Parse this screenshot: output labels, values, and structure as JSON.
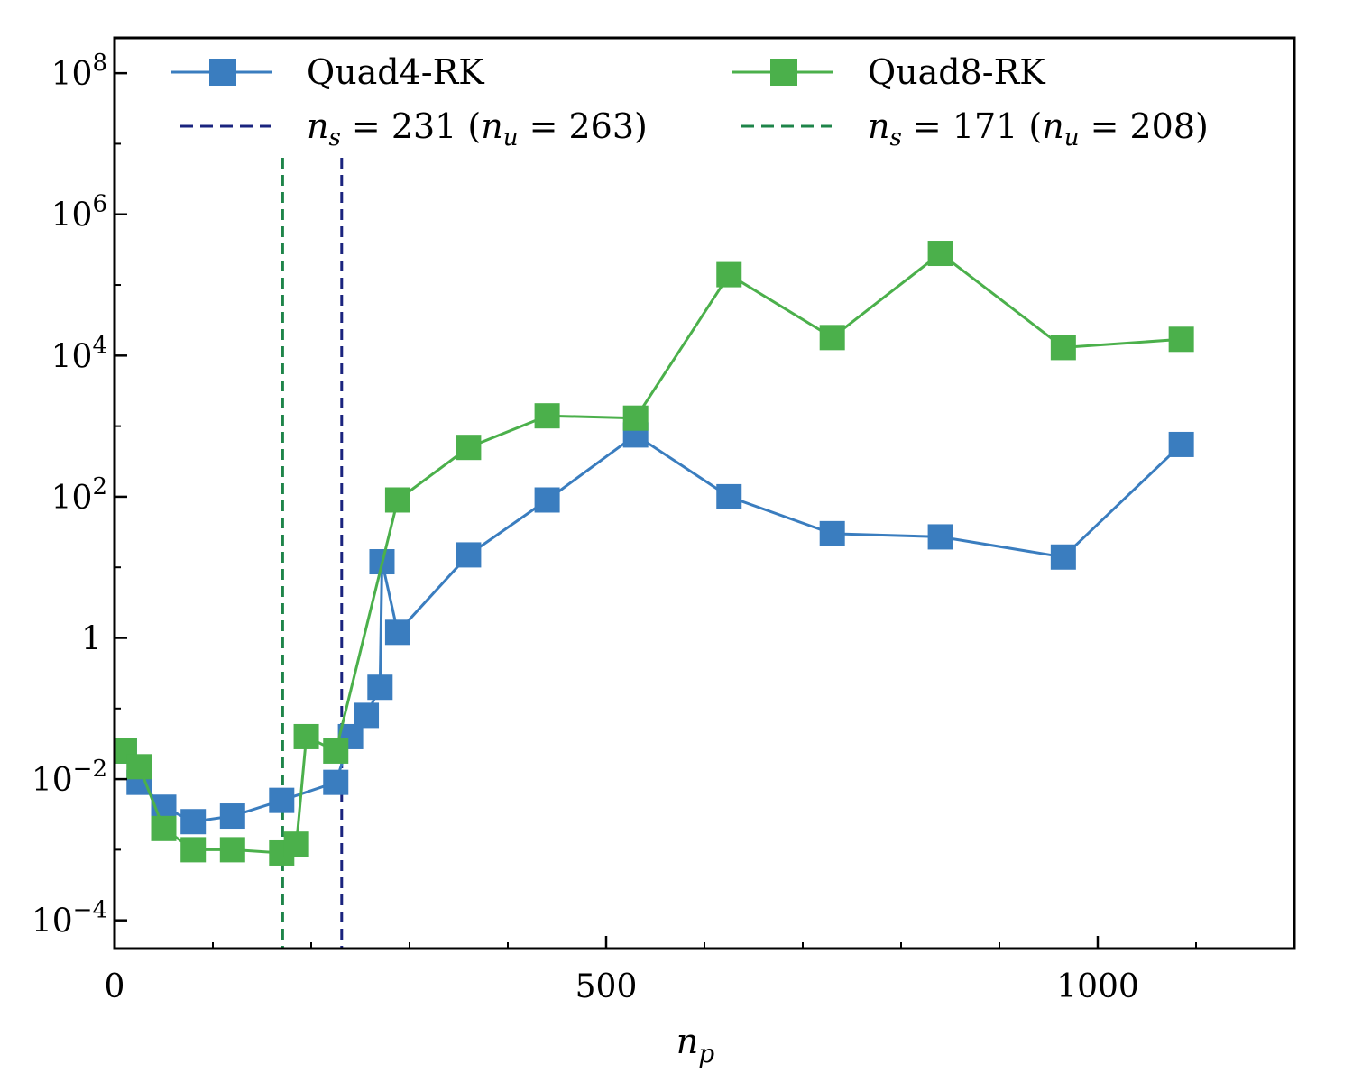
{
  "chart_data": {
    "type": "line",
    "xlabel_base": "n",
    "xlabel_sub": "p",
    "ylabel": "",
    "xlim": [
      0,
      1200
    ],
    "ylim_log10": [
      -4.4,
      8.5
    ],
    "y_scale": "log",
    "grid": false,
    "legend_position": "top",
    "x_ticks": [
      {
        "value": 0,
        "label": "0"
      },
      {
        "value": 500,
        "label": "500"
      },
      {
        "value": 1000,
        "label": "1000"
      }
    ],
    "y_ticks": [
      {
        "exp": 8,
        "base": "10",
        "sup": "8"
      },
      {
        "exp": 6,
        "base": "10",
        "sup": "6"
      },
      {
        "exp": 4,
        "base": "10",
        "sup": "4"
      },
      {
        "exp": 2,
        "base": "10",
        "sup": "2"
      },
      {
        "exp": 0,
        "base": "1",
        "sup": ""
      },
      {
        "exp": -2,
        "base": "10",
        "sup": "−2"
      },
      {
        "exp": -4,
        "base": "10",
        "sup": "−4"
      }
    ],
    "series": [
      {
        "name": "Quad4-RK",
        "color": "#3a7dbf",
        "marker": "square",
        "x": [
          10,
          25,
          50,
          80,
          120,
          170,
          225,
          240,
          256,
          270,
          272,
          288,
          360,
          440,
          530,
          625,
          730,
          840,
          965,
          1085
        ],
        "y": [
          0.025,
          0.009,
          0.004,
          0.0025,
          0.003,
          0.005,
          0.009,
          0.04,
          0.08,
          0.2,
          12,
          1.2,
          15,
          90,
          750,
          100,
          30,
          27,
          14,
          550
        ]
      },
      {
        "name": "Quad8-RK",
        "color": "#4bb04b",
        "marker": "square",
        "x": [
          10,
          25,
          50,
          80,
          120,
          170,
          185,
          195,
          225,
          288,
          360,
          440,
          530,
          625,
          730,
          840,
          965,
          1085
        ],
        "y": [
          0.025,
          0.015,
          0.002,
          0.001,
          0.001,
          0.0009,
          0.0012,
          0.04,
          0.025,
          90,
          500,
          1400,
          1300,
          140000,
          18000,
          280000,
          13000,
          17000
        ]
      }
    ],
    "vlines": [
      {
        "x": 231,
        "color": "#1a237e",
        "style": "dashed",
        "label_prefix": "n",
        "label_prefix_sub": "s",
        "label_value": " = 231 (",
        "label_inner": "n",
        "label_inner_sub": "u",
        "label_tail": " = 263)"
      },
      {
        "x": 171,
        "color": "#1e8449",
        "style": "dashed",
        "label_prefix": "n",
        "label_prefix_sub": "s",
        "label_value": " = 171 (",
        "label_inner": "n",
        "label_inner_sub": "u",
        "label_tail": " = 208)"
      }
    ]
  }
}
